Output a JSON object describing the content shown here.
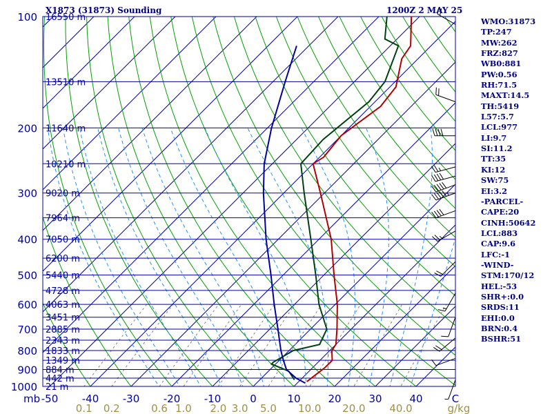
{
  "header": {
    "station": "X1873 (31873) Sounding",
    "time": "1200Z  2 MAY 25"
  },
  "indices": [
    "WMO:31873",
    "TP:247",
    "MW:262",
    "FRZ:827",
    "WB0:881",
    "PW:0.56",
    "RH:71.5",
    "MAXT:14.5",
    "TH:5419",
    "L57:5.7",
    "LCL:977",
    "LI:9.7",
    "SI:11.2",
    "TT:35",
    "KI:12",
    "SW:75",
    "EI:3.2",
    "-PARCEL-",
    "CAPE:20",
    "CINH:50642",
    "LCL:883",
    "CAP:9.6",
    "LFC:-1",
    "-WIND-",
    "STM:170/12",
    "HEL:-53",
    "SHR+:0.0",
    "SRDS:11",
    "EHI:0.0",
    "BRN:0.4",
    "BSHR:51"
  ],
  "colors": {
    "isobar": "#0000a0",
    "isotherm": "#0000a0",
    "dry_adiabat": "#00a000",
    "moist_adiabat": "#2090ff",
    "mixing_ratio": "#808080",
    "temperature": "#b00000",
    "dewpoint": "#004010",
    "parcel": "#0000a0",
    "axis_text": "#0000a0",
    "mixing_ratio_text": "#a09040",
    "wind_barb": "#000000"
  },
  "chart_data": {
    "type": "line",
    "x_unit": "C",
    "y_unit": "mb",
    "x_tick_labels": [
      "-50",
      "-40",
      "-30",
      "-20",
      "-10",
      "0",
      "10",
      "20",
      "30",
      "40",
      "C"
    ],
    "pressure_tick_labels": [
      "100",
      "200",
      "300",
      "400",
      "500",
      "600",
      "700",
      "800",
      "900",
      "1000"
    ],
    "x_axis_prefix": "mb",
    "xlim": [
      -50,
      50
    ],
    "ylim": [
      1000,
      100
    ],
    "height_labels": [
      {
        "p": 100,
        "label": "16550 m"
      },
      {
        "p": 150,
        "label": "13510 m"
      },
      {
        "p": 200,
        "label": "11640 m"
      },
      {
        "p": 250,
        "label": "10210 m"
      },
      {
        "p": 300,
        "label": "9020 m"
      },
      {
        "p": 350,
        "label": "7964 m"
      },
      {
        "p": 400,
        "label": "7050 m"
      },
      {
        "p": 450,
        "label": "6200 m"
      },
      {
        "p": 500,
        "label": "5440 m"
      },
      {
        "p": 550,
        "label": "4728 m"
      },
      {
        "p": 600,
        "label": "4063 m"
      },
      {
        "p": 650,
        "label": "3451 m"
      },
      {
        "p": 700,
        "label": "2885 m"
      },
      {
        "p": 750,
        "label": "2343 m"
      },
      {
        "p": 800,
        "label": "1833 m"
      },
      {
        "p": 850,
        "label": "1349 m"
      },
      {
        "p": 900,
        "label": "884 m"
      },
      {
        "p": 950,
        "label": "442 m"
      },
      {
        "p": 1000,
        "label": "21 m"
      }
    ],
    "mixing_ratio_labels": [
      "0.1",
      "0.2",
      "0.6",
      "1.0",
      "2.0",
      "3.0",
      "5.0",
      "10.0",
      "20.0",
      "40.0",
      "g/kg"
    ],
    "mixing_ratio_values": [
      0.1,
      0.2,
      0.6,
      1.0,
      2.0,
      3.0,
      5.0,
      10.0,
      20.0,
      40.0
    ],
    "series": [
      {
        "id": "temperature",
        "points": [
          {
            "p": 970,
            "t": 12.0
          },
          {
            "p": 930,
            "t": 12.5
          },
          {
            "p": 890,
            "t": 13.0
          },
          {
            "p": 850,
            "t": 13.0
          },
          {
            "p": 800,
            "t": 10.5
          },
          {
            "p": 770,
            "t": 10.0
          },
          {
            "p": 700,
            "t": 6.5
          },
          {
            "p": 600,
            "t": 0.5
          },
          {
            "p": 500,
            "t": -7.5
          },
          {
            "p": 400,
            "t": -17.0
          },
          {
            "p": 300,
            "t": -31.0
          },
          {
            "p": 250,
            "t": -40.0
          },
          {
            "p": 240,
            "t": -39.0
          },
          {
            "p": 210,
            "t": -40.0
          },
          {
            "p": 175,
            "t": -37.5
          },
          {
            "p": 155,
            "t": -38.5
          },
          {
            "p": 130,
            "t": -44.0
          },
          {
            "p": 120,
            "t": -45.0
          },
          {
            "p": 100,
            "t": -52.0
          }
        ]
      },
      {
        "id": "dewpoint",
        "points": [
          {
            "p": 960,
            "t": 8.5
          },
          {
            "p": 910,
            "t": 5.0
          },
          {
            "p": 870,
            "t": -1.0
          },
          {
            "p": 860,
            "t": -1.0
          },
          {
            "p": 800,
            "t": 1.0
          },
          {
            "p": 770,
            "t": 6.0
          },
          {
            "p": 700,
            "t": 4.0
          },
          {
            "p": 600,
            "t": -4.0
          },
          {
            "p": 500,
            "t": -12.0
          },
          {
            "p": 400,
            "t": -22.0
          },
          {
            "p": 300,
            "t": -35.0
          },
          {
            "p": 250,
            "t": -43.0
          },
          {
            "p": 215,
            "t": -43.5
          },
          {
            "p": 170,
            "t": -41.5
          },
          {
            "p": 150,
            "t": -42.5
          },
          {
            "p": 120,
            "t": -48.0
          },
          {
            "p": 115,
            "t": -53.0
          },
          {
            "p": 100,
            "t": -58.0
          }
        ]
      },
      {
        "id": "parcel",
        "points": [
          {
            "p": 980,
            "t": 12.0
          },
          {
            "p": 950,
            "t": 8.5
          },
          {
            "p": 900,
            "t": 4.0
          },
          {
            "p": 850,
            "t": 1.0
          },
          {
            "p": 800,
            "t": -2.0
          },
          {
            "p": 700,
            "t": -8.0
          },
          {
            "p": 600,
            "t": -15.0
          },
          {
            "p": 500,
            "t": -23.0
          },
          {
            "p": 400,
            "t": -33.0
          },
          {
            "p": 300,
            "t": -45.0
          },
          {
            "p": 250,
            "t": -52.0
          },
          {
            "p": 200,
            "t": -59.0
          },
          {
            "p": 150,
            "t": -67.0
          },
          {
            "p": 120,
            "t": -73.0
          }
        ]
      }
    ],
    "wind_barbs": [
      {
        "p": 105,
        "dir": 300,
        "spd": 20
      },
      {
        "p": 170,
        "dir": 290,
        "spd": 20
      },
      {
        "p": 210,
        "dir": 270,
        "spd": 40
      },
      {
        "p": 255,
        "dir": 255,
        "spd": 25
      },
      {
        "p": 270,
        "dir": 255,
        "spd": 40
      },
      {
        "p": 285,
        "dir": 250,
        "spd": 50
      },
      {
        "p": 300,
        "dir": 250,
        "spd": 55
      },
      {
        "p": 335,
        "dir": 250,
        "spd": 40
      },
      {
        "p": 380,
        "dir": 240,
        "spd": 25
      },
      {
        "p": 460,
        "dir": 225,
        "spd": 20
      },
      {
        "p": 560,
        "dir": 210,
        "spd": 15
      },
      {
        "p": 650,
        "dir": 200,
        "spd": 10
      },
      {
        "p": 740,
        "dir": 230,
        "spd": 20
      },
      {
        "p": 840,
        "dir": 250,
        "spd": 10
      },
      {
        "p": 960,
        "dir": 200,
        "spd": 5
      }
    ]
  }
}
